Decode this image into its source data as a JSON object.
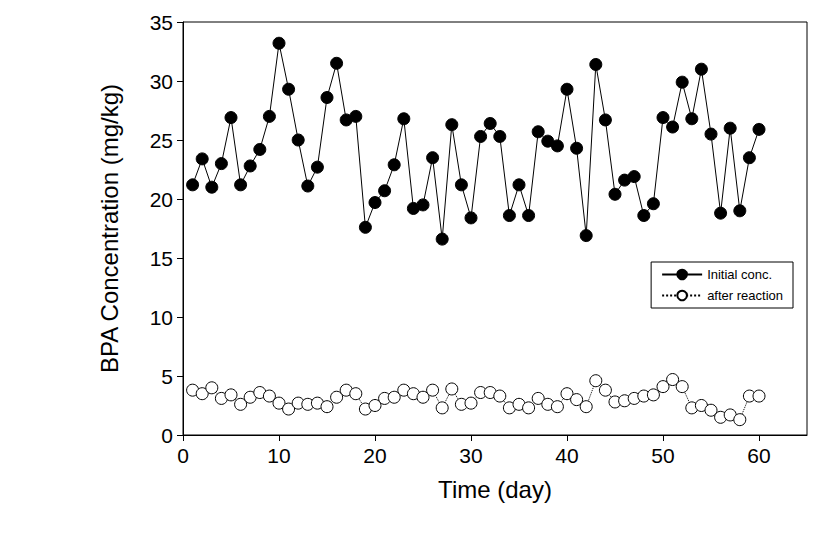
{
  "chart_data": {
    "type": "line",
    "x_label": "Time (day)",
    "y_label": "BPA Concentration (mg/kg)",
    "x": [
      1,
      2,
      3,
      4,
      5,
      6,
      7,
      8,
      9,
      10,
      11,
      12,
      13,
      14,
      15,
      16,
      17,
      18,
      19,
      20,
      21,
      22,
      23,
      24,
      25,
      26,
      27,
      28,
      29,
      30,
      31,
      32,
      33,
      34,
      35,
      36,
      37,
      38,
      39,
      40,
      41,
      42,
      43,
      44,
      45,
      46,
      47,
      48,
      49,
      50,
      51,
      52,
      53,
      54,
      55,
      56,
      57,
      58,
      59,
      60
    ],
    "series": [
      {
        "name": "Initial conc.",
        "color": "#000000",
        "marker": "filled",
        "line_style": "solid",
        "values": [
          21.2,
          23.4,
          21.0,
          23.0,
          26.9,
          21.2,
          22.8,
          24.2,
          27.0,
          33.2,
          29.3,
          25.0,
          21.1,
          22.7,
          28.6,
          31.5,
          26.7,
          27.0,
          17.6,
          19.7,
          20.7,
          22.9,
          26.8,
          19.2,
          19.5,
          23.5,
          16.6,
          26.3,
          21.2,
          18.4,
          25.3,
          26.4,
          25.3,
          18.6,
          21.2,
          18.6,
          25.7,
          24.9,
          24.5,
          29.3,
          24.3,
          16.9,
          31.4,
          26.7,
          20.4,
          21.6,
          21.9,
          18.6,
          19.6,
          26.9,
          26.1,
          29.9,
          26.8,
          31.0,
          25.5,
          18.8,
          26.0,
          19.0,
          23.5,
          25.9
        ]
      },
      {
        "name": "after reaction",
        "color": "#000000",
        "marker": "open",
        "line_style": "dotted",
        "values": [
          3.8,
          3.5,
          4.0,
          3.1,
          3.4,
          2.6,
          3.2,
          3.6,
          3.3,
          2.7,
          2.2,
          2.7,
          2.6,
          2.7,
          2.4,
          3.2,
          3.8,
          3.5,
          2.2,
          2.5,
          3.1,
          3.2,
          3.8,
          3.5,
          3.2,
          3.8,
          2.3,
          3.9,
          2.6,
          2.7,
          3.6,
          3.6,
          3.3,
          2.3,
          2.6,
          2.3,
          3.1,
          2.6,
          2.4,
          3.5,
          3.0,
          2.4,
          4.6,
          3.8,
          2.8,
          2.9,
          3.1,
          3.3,
          3.4,
          4.1,
          4.7,
          4.1,
          2.3,
          2.5,
          2.1,
          1.5,
          1.7,
          1.3,
          3.3,
          3.3
        ]
      }
    ],
    "xlim": [
      0,
      65
    ],
    "xticks": [
      0,
      10,
      20,
      30,
      40,
      50,
      60
    ],
    "ylim": [
      0,
      35
    ],
    "yticks": [
      0,
      5,
      10,
      15,
      20,
      25,
      30,
      35
    ],
    "grid": false,
    "legend": "right"
  }
}
